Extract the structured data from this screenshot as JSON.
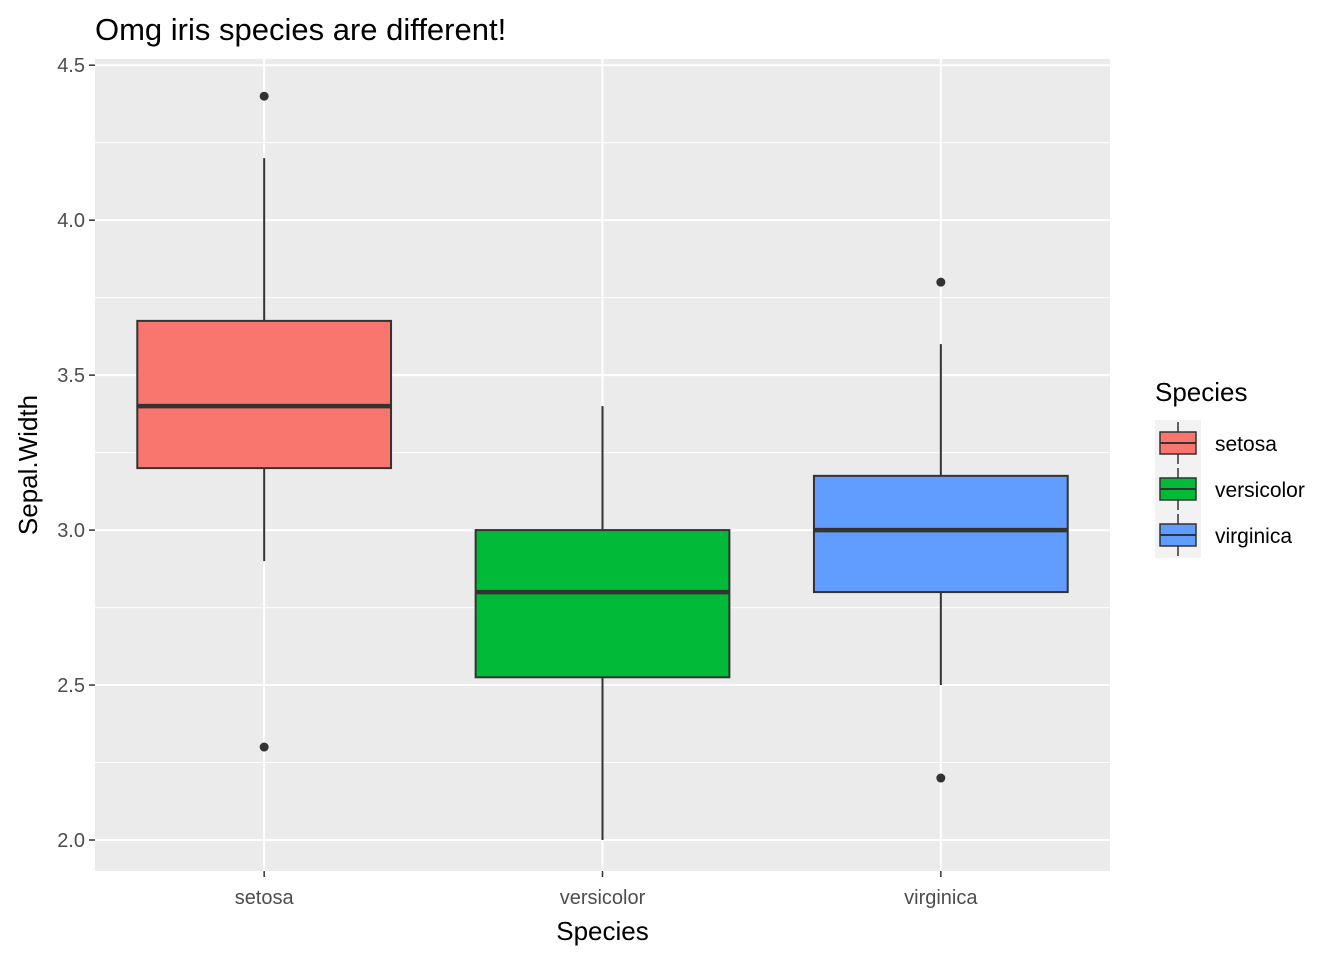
{
  "chart_data": {
    "type": "boxplot",
    "title": "Omg iris species are different!",
    "xlabel": "Species",
    "ylabel": "Sepal.Width",
    "categories": [
      "setosa",
      "versicolor",
      "virginica"
    ],
    "ylim": [
      1.9,
      4.52
    ],
    "yticks": [
      "2.0",
      "2.5",
      "3.0",
      "3.5",
      "4.0",
      "4.5"
    ],
    "grid": true,
    "legend": {
      "title": "Species",
      "position": "right",
      "entries": [
        "setosa",
        "versicolor",
        "virginica"
      ]
    },
    "series": [
      {
        "category": "setosa",
        "color": "#F8766D",
        "lower_whisker": 2.9,
        "q1": 3.2,
        "median": 3.4,
        "q3": 3.675,
        "upper_whisker": 4.2,
        "outliers": [
          4.4,
          2.3
        ]
      },
      {
        "category": "versicolor",
        "color": "#00BA38",
        "lower_whisker": 2.0,
        "q1": 2.525,
        "median": 2.8,
        "q3": 3.0,
        "upper_whisker": 3.4,
        "outliers": []
      },
      {
        "category": "virginica",
        "color": "#619CFF",
        "lower_whisker": 2.5,
        "q1": 2.8,
        "median": 3.0,
        "q3": 3.175,
        "upper_whisker": 3.6,
        "outliers": [
          3.8,
          2.2
        ]
      }
    ]
  }
}
